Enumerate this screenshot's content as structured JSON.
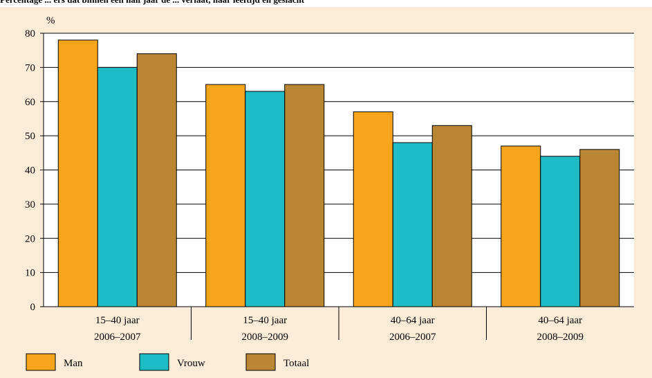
{
  "chart_data": {
    "type": "bar",
    "title": "Percentage ... ers dat binnen een half jaar de ... verlaat, naar leeftijd en geslacht",
    "ylabel": "%",
    "ylim": [
      0,
      80
    ],
    "yticks": [
      0,
      10,
      20,
      30,
      40,
      50,
      60,
      70,
      80
    ],
    "grid": true,
    "legend_position": "bottom",
    "categories": [
      [
        "15–40 jaar",
        "2006–2007"
      ],
      [
        "15–40 jaar",
        "2008–2009"
      ],
      [
        "40–64 jaar",
        "2006–2007"
      ],
      [
        "40–64 jaar",
        "2008–2009"
      ]
    ],
    "series": [
      {
        "name": "Man",
        "color": "#f7a51b",
        "values": [
          78,
          65,
          57,
          47
        ]
      },
      {
        "name": "Vrouw",
        "color": "#1fbcc6",
        "values": [
          70,
          63,
          48,
          44
        ]
      },
      {
        "name": "Totaal",
        "color": "#b98634",
        "values": [
          74,
          65,
          53,
          46
        ]
      }
    ]
  }
}
